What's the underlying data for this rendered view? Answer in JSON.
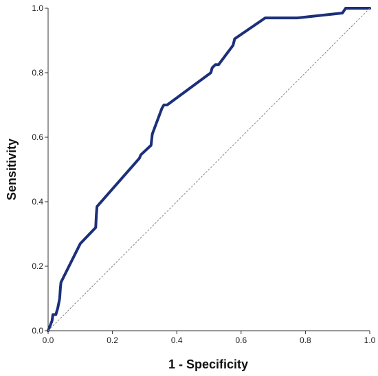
{
  "chart_data": {
    "type": "line",
    "title": "",
    "xlabel": "1 - Specificity",
    "ylabel": "Sensitivity",
    "xlim": [
      0,
      1
    ],
    "ylim": [
      0,
      1
    ],
    "x_ticks": [
      "0.0",
      "0.2",
      "0.4",
      "0.6",
      "0.8",
      "1.0"
    ],
    "y_ticks": [
      "0.0",
      "0.2",
      "0.4",
      "0.6",
      "0.8",
      "1.0"
    ],
    "grid": false,
    "legend": "none",
    "series": [
      {
        "role": "roc-curve",
        "color": "#1b2f7a",
        "x": [
          0.0,
          0.008,
          0.012,
          0.015,
          0.024,
          0.03,
          0.036,
          0.038,
          0.04,
          0.1,
          0.148,
          0.15,
          0.152,
          0.284,
          0.288,
          0.32,
          0.324,
          0.354,
          0.36,
          0.37,
          0.506,
          0.51,
          0.52,
          0.53,
          0.575,
          0.58,
          0.675,
          0.775,
          0.915,
          0.925,
          1.0
        ],
        "y": [
          0.0,
          0.02,
          0.03,
          0.05,
          0.05,
          0.07,
          0.1,
          0.13,
          0.15,
          0.27,
          0.32,
          0.36,
          0.385,
          0.535,
          0.545,
          0.575,
          0.61,
          0.69,
          0.7,
          0.7,
          0.8,
          0.815,
          0.825,
          0.825,
          0.885,
          0.905,
          0.97,
          0.97,
          0.985,
          1.0,
          1.0
        ]
      },
      {
        "role": "reference-line",
        "color": "#888888",
        "x": [
          0,
          1
        ],
        "y": [
          0,
          1
        ]
      }
    ]
  },
  "colors": {
    "axis": "#333333",
    "curve": "#1b2f7a",
    "reference": "#888888"
  }
}
